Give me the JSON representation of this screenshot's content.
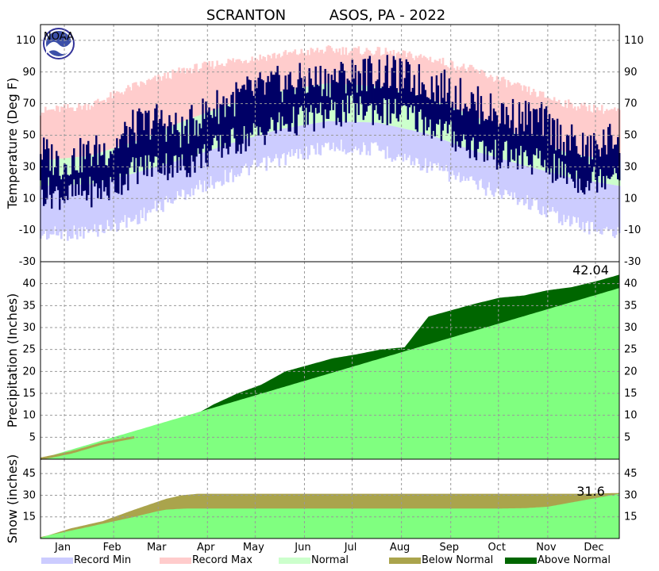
{
  "chart_data": {
    "type": "area",
    "title": {
      "station": "SCRANTON",
      "network": "ASOS, PA - 2022"
    },
    "x": {
      "month_labels": [
        "Jan",
        "Feb",
        "Mar",
        "Apr",
        "May",
        "Jun",
        "Jul",
        "Aug",
        "Sep",
        "Oct",
        "Nov",
        "Dec"
      ]
    },
    "panels": [
      {
        "id": "temperature",
        "ylabel": "Temperature (Deg F)",
        "ylim": [
          -30,
          120
        ],
        "yticks": [
          -30,
          -10,
          10,
          30,
          50,
          70,
          90,
          110
        ],
        "grid": true,
        "series_anchor_days": [
          1,
          32,
          60,
          91,
          121,
          152,
          182,
          213,
          244,
          274,
          305,
          335,
          365
        ],
        "record_min": [
          -8,
          -6,
          2,
          18,
          30,
          40,
          48,
          46,
          36,
          24,
          14,
          0,
          -8
        ],
        "normal_low": [
          18,
          19,
          26,
          35,
          45,
          54,
          59,
          58,
          51,
          40,
          31,
          23,
          18
        ],
        "normal_high": [
          34,
          37,
          46,
          59,
          70,
          78,
          83,
          81,
          74,
          62,
          49,
          38,
          34
        ],
        "record_max": [
          62,
          66,
          78,
          88,
          94,
          98,
          101,
          100,
          96,
          88,
          76,
          66,
          62
        ],
        "observed_anchor_days": [
          1,
          15,
          30,
          45,
          60,
          75,
          90,
          105,
          120,
          135,
          150,
          165,
          180,
          195,
          210,
          225,
          240,
          255,
          270,
          285,
          300,
          315,
          330,
          345,
          365
        ],
        "observed_high": [
          40,
          32,
          38,
          42,
          55,
          60,
          52,
          65,
          72,
          78,
          82,
          84,
          85,
          88,
          90,
          88,
          84,
          80,
          72,
          65,
          62,
          60,
          48,
          40,
          50
        ],
        "observed_low": [
          15,
          12,
          14,
          16,
          28,
          32,
          30,
          38,
          45,
          50,
          56,
          60,
          62,
          66,
          66,
          64,
          60,
          52,
          44,
          38,
          36,
          32,
          26,
          20,
          30
        ]
      },
      {
        "id": "precipitation",
        "ylabel": "Precipitation (Inches)",
        "ylim": [
          0,
          45
        ],
        "yticks": [
          5,
          10,
          15,
          20,
          25,
          30,
          35,
          40
        ],
        "grid": true,
        "normal_final": 39.0,
        "observed_anchor_days": [
          1,
          20,
          40,
          60,
          80,
          95,
          110,
          125,
          140,
          155,
          170,
          185,
          200,
          215,
          230,
          245,
          260,
          275,
          290,
          305,
          320,
          335,
          350,
          365
        ],
        "observed": [
          0.1,
          1.5,
          3.6,
          5.0,
          7.0,
          9.5,
          12.5,
          15.0,
          17.0,
          20.0,
          21.5,
          23.0,
          23.9,
          25.0,
          25.5,
          32.5,
          34.0,
          35.5,
          36.8,
          37.3,
          38.5,
          39.2,
          40.5,
          42.04
        ],
        "annotation": "42.04"
      },
      {
        "id": "snow",
        "ylabel": "Snow (inches)",
        "ylim": [
          0,
          55
        ],
        "yticks": [
          15,
          30,
          45
        ],
        "grid": true,
        "normal_anchor_days": [
          1,
          31,
          60,
          75,
          80,
          91,
          105,
          121,
          290,
          305,
          320,
          335,
          350,
          365
        ],
        "normal": [
          1,
          8,
          15,
          19,
          20,
          20.7,
          20.8,
          20.8,
          20.8,
          21,
          22,
          25,
          28,
          31
        ],
        "observed_anchor_days": [
          1,
          20,
          40,
          60,
          80,
          90,
          100,
          110,
          300,
          320,
          335,
          345,
          365
        ],
        "observed": [
          0.5,
          7,
          12,
          20,
          27.5,
          30,
          31,
          31,
          31,
          31,
          31,
          31,
          31.6
        ],
        "annotation": "31.6"
      }
    ],
    "legend": {
      "position": "bottom",
      "items": [
        {
          "label": "Record Min",
          "color": "#ccccff"
        },
        {
          "label": "Record Max",
          "color": "#ffcccc"
        },
        {
          "label": "Normal",
          "color": "#ccffcc"
        },
        {
          "label": "Below Normal",
          "color": "#aaa44c"
        },
        {
          "label": "Above Normal",
          "color": "#006600"
        }
      ]
    },
    "colors": {
      "observed_temp": "#000066",
      "normal_fill": "#80ff80",
      "above_normal": "#006600",
      "below_normal": "#aaa44c",
      "grid": "#999999"
    },
    "badge": "NOAA"
  }
}
